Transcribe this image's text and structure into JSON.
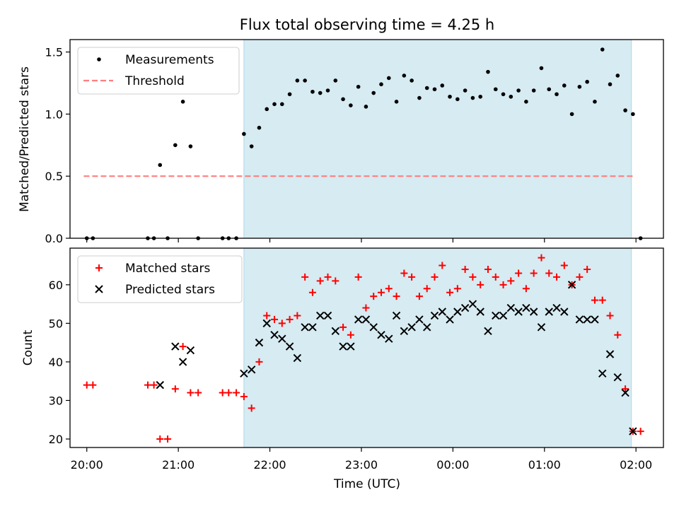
{
  "chart_data": [
    {
      "type": "scatter",
      "title": "Flux total observing time = 4.25 h",
      "xlabel": "",
      "ylabel": "Matched/Predicted stars",
      "xlim": [
        "19:49",
        "02:18"
      ],
      "ylim": [
        0,
        1.6
      ],
      "yticks": [
        "0.0",
        "0.5",
        "1.0",
        "1.5"
      ],
      "shaded_region": {
        "from": "21:43",
        "to": "01:57",
        "color": "#add8e6"
      },
      "legend_position": "upper left",
      "series": [
        {
          "name": "Measurements",
          "marker": "dot",
          "color": "#000000",
          "points": [
            [
              "20:00",
              0
            ],
            [
              "20:04",
              0
            ],
            [
              "20:40",
              0
            ],
            [
              "20:44",
              0
            ],
            [
              "20:48",
              0.59
            ],
            [
              "20:53",
              0
            ],
            [
              "20:58",
              0.75
            ],
            [
              "21:03",
              1.1
            ],
            [
              "21:08",
              0.74
            ],
            [
              "21:13",
              0
            ],
            [
              "21:29",
              0
            ],
            [
              "21:33",
              0
            ],
            [
              "21:38",
              0
            ],
            [
              "21:43",
              0.84
            ],
            [
              "21:48",
              0.74
            ],
            [
              "21:53",
              0.89
            ],
            [
              "21:58",
              1.04
            ],
            [
              "22:03",
              1.08
            ],
            [
              "22:08",
              1.08
            ],
            [
              "22:13",
              1.16
            ],
            [
              "22:18",
              1.27
            ],
            [
              "22:23",
              1.27
            ],
            [
              "22:28",
              1.18
            ],
            [
              "22:33",
              1.17
            ],
            [
              "22:38",
              1.19
            ],
            [
              "22:43",
              1.27
            ],
            [
              "22:48",
              1.12
            ],
            [
              "22:53",
              1.07
            ],
            [
              "22:58",
              1.22
            ],
            [
              "23:03",
              1.06
            ],
            [
              "23:08",
              1.17
            ],
            [
              "23:13",
              1.24
            ],
            [
              "23:18",
              1.29
            ],
            [
              "23:23",
              1.1
            ],
            [
              "23:28",
              1.31
            ],
            [
              "23:33",
              1.27
            ],
            [
              "23:38",
              1.13
            ],
            [
              "23:43",
              1.21
            ],
            [
              "23:48",
              1.2
            ],
            [
              "23:53",
              1.23
            ],
            [
              "23:58",
              1.14
            ],
            [
              "00:03",
              1.12
            ],
            [
              "00:08",
              1.19
            ],
            [
              "00:13",
              1.13
            ],
            [
              "00:18",
              1.14
            ],
            [
              "00:23",
              1.34
            ],
            [
              "00:28",
              1.2
            ],
            [
              "00:33",
              1.16
            ],
            [
              "00:38",
              1.14
            ],
            [
              "00:43",
              1.19
            ],
            [
              "00:48",
              1.1
            ],
            [
              "00:53",
              1.19
            ],
            [
              "00:58",
              1.37
            ],
            [
              "01:03",
              1.2
            ],
            [
              "01:08",
              1.16
            ],
            [
              "01:13",
              1.23
            ],
            [
              "01:18",
              1.0
            ],
            [
              "01:23",
              1.22
            ],
            [
              "01:28",
              1.26
            ],
            [
              "01:33",
              1.1
            ],
            [
              "01:38",
              1.52
            ],
            [
              "01:43",
              1.24
            ],
            [
              "01:48",
              1.31
            ],
            [
              "01:53",
              1.03
            ],
            [
              "01:58",
              1.0
            ],
            [
              "02:03",
              0
            ]
          ]
        },
        {
          "name": "Threshold",
          "marker": "dashed-line",
          "color": "#ff7f7f",
          "points": [
            [
              "19:58",
              0.5
            ],
            [
              "01:59",
              0.5
            ]
          ]
        }
      ]
    },
    {
      "type": "scatter",
      "title": "",
      "xlabel": "Time (UTC)",
      "ylabel": "Count",
      "xlim": [
        "19:49",
        "02:18"
      ],
      "ylim": [
        17.8,
        69.5
      ],
      "yticks": [
        "20",
        "30",
        "40",
        "50",
        "60"
      ],
      "xticks": [
        "20:00",
        "21:00",
        "22:00",
        "23:00",
        "00:00",
        "01:00",
        "02:00"
      ],
      "shaded_region": {
        "from": "21:43",
        "to": "01:57",
        "color": "#add8e6"
      },
      "legend_position": "upper left",
      "series": [
        {
          "name": "Matched stars",
          "marker": "plus",
          "color": "#ff0000",
          "points": [
            [
              "20:00",
              34
            ],
            [
              "20:04",
              34
            ],
            [
              "20:40",
              34
            ],
            [
              "20:44",
              34
            ],
            [
              "20:48",
              20
            ],
            [
              "20:53",
              20
            ],
            [
              "20:58",
              33
            ],
            [
              "21:03",
              44
            ],
            [
              "21:08",
              32
            ],
            [
              "21:13",
              32
            ],
            [
              "21:29",
              32
            ],
            [
              "21:33",
              32
            ],
            [
              "21:38",
              32
            ],
            [
              "21:43",
              31
            ],
            [
              "21:48",
              28
            ],
            [
              "21:53",
              40
            ],
            [
              "21:58",
              52
            ],
            [
              "22:03",
              51
            ],
            [
              "22:08",
              50
            ],
            [
              "22:13",
              51
            ],
            [
              "22:18",
              52
            ],
            [
              "22:23",
              62
            ],
            [
              "22:28",
              58
            ],
            [
              "22:33",
              61
            ],
            [
              "22:38",
              62
            ],
            [
              "22:43",
              61
            ],
            [
              "22:48",
              49
            ],
            [
              "22:53",
              47
            ],
            [
              "22:58",
              62
            ],
            [
              "23:03",
              54
            ],
            [
              "23:08",
              57
            ],
            [
              "23:13",
              58
            ],
            [
              "23:18",
              59
            ],
            [
              "23:23",
              57
            ],
            [
              "23:28",
              63
            ],
            [
              "23:33",
              62
            ],
            [
              "23:38",
              57
            ],
            [
              "23:43",
              59
            ],
            [
              "23:48",
              62
            ],
            [
              "23:53",
              65
            ],
            [
              "23:58",
              58
            ],
            [
              "00:03",
              59
            ],
            [
              "00:08",
              64
            ],
            [
              "00:13",
              62
            ],
            [
              "00:18",
              60
            ],
            [
              "00:23",
              64
            ],
            [
              "00:28",
              62
            ],
            [
              "00:33",
              60
            ],
            [
              "00:38",
              61
            ],
            [
              "00:43",
              63
            ],
            [
              "00:48",
              59
            ],
            [
              "00:53",
              63
            ],
            [
              "00:58",
              67
            ],
            [
              "01:03",
              63
            ],
            [
              "01:08",
              62
            ],
            [
              "01:13",
              65
            ],
            [
              "01:18",
              60
            ],
            [
              "01:23",
              62
            ],
            [
              "01:28",
              64
            ],
            [
              "01:33",
              56
            ],
            [
              "01:38",
              56
            ],
            [
              "01:43",
              52
            ],
            [
              "01:48",
              47
            ],
            [
              "01:53",
              33
            ],
            [
              "01:58",
              22
            ],
            [
              "02:03",
              22
            ]
          ]
        },
        {
          "name": "Predicted stars",
          "marker": "x",
          "color": "#000000",
          "points": [
            [
              "20:48",
              34
            ],
            [
              "20:58",
              44
            ],
            [
              "21:03",
              40
            ],
            [
              "21:08",
              43
            ],
            [
              "21:43",
              37
            ],
            [
              "21:48",
              38
            ],
            [
              "21:53",
              45
            ],
            [
              "21:58",
              50
            ],
            [
              "22:03",
              47
            ],
            [
              "22:08",
              46
            ],
            [
              "22:13",
              44
            ],
            [
              "22:18",
              41
            ],
            [
              "22:23",
              49
            ],
            [
              "22:28",
              49
            ],
            [
              "22:33",
              52
            ],
            [
              "22:38",
              52
            ],
            [
              "22:43",
              48
            ],
            [
              "22:48",
              44
            ],
            [
              "22:53",
              44
            ],
            [
              "22:58",
              51
            ],
            [
              "23:03",
              51
            ],
            [
              "23:08",
              49
            ],
            [
              "23:13",
              47
            ],
            [
              "23:18",
              46
            ],
            [
              "23:23",
              52
            ],
            [
              "23:28",
              48
            ],
            [
              "23:33",
              49
            ],
            [
              "23:38",
              51
            ],
            [
              "23:43",
              49
            ],
            [
              "23:48",
              52
            ],
            [
              "23:53",
              53
            ],
            [
              "23:58",
              51
            ],
            [
              "00:03",
              53
            ],
            [
              "00:08",
              54
            ],
            [
              "00:13",
              55
            ],
            [
              "00:18",
              53
            ],
            [
              "00:23",
              48
            ],
            [
              "00:28",
              52
            ],
            [
              "00:33",
              52
            ],
            [
              "00:38",
              54
            ],
            [
              "00:43",
              53
            ],
            [
              "00:48",
              54
            ],
            [
              "00:53",
              53
            ],
            [
              "00:58",
              49
            ],
            [
              "01:03",
              53
            ],
            [
              "01:08",
              54
            ],
            [
              "01:13",
              53
            ],
            [
              "01:18",
              60
            ],
            [
              "01:23",
              51
            ],
            [
              "01:28",
              51
            ],
            [
              "01:33",
              51
            ],
            [
              "01:38",
              37
            ],
            [
              "01:43",
              42
            ],
            [
              "01:48",
              36
            ],
            [
              "01:53",
              32
            ],
            [
              "01:58",
              22
            ]
          ]
        }
      ]
    }
  ]
}
